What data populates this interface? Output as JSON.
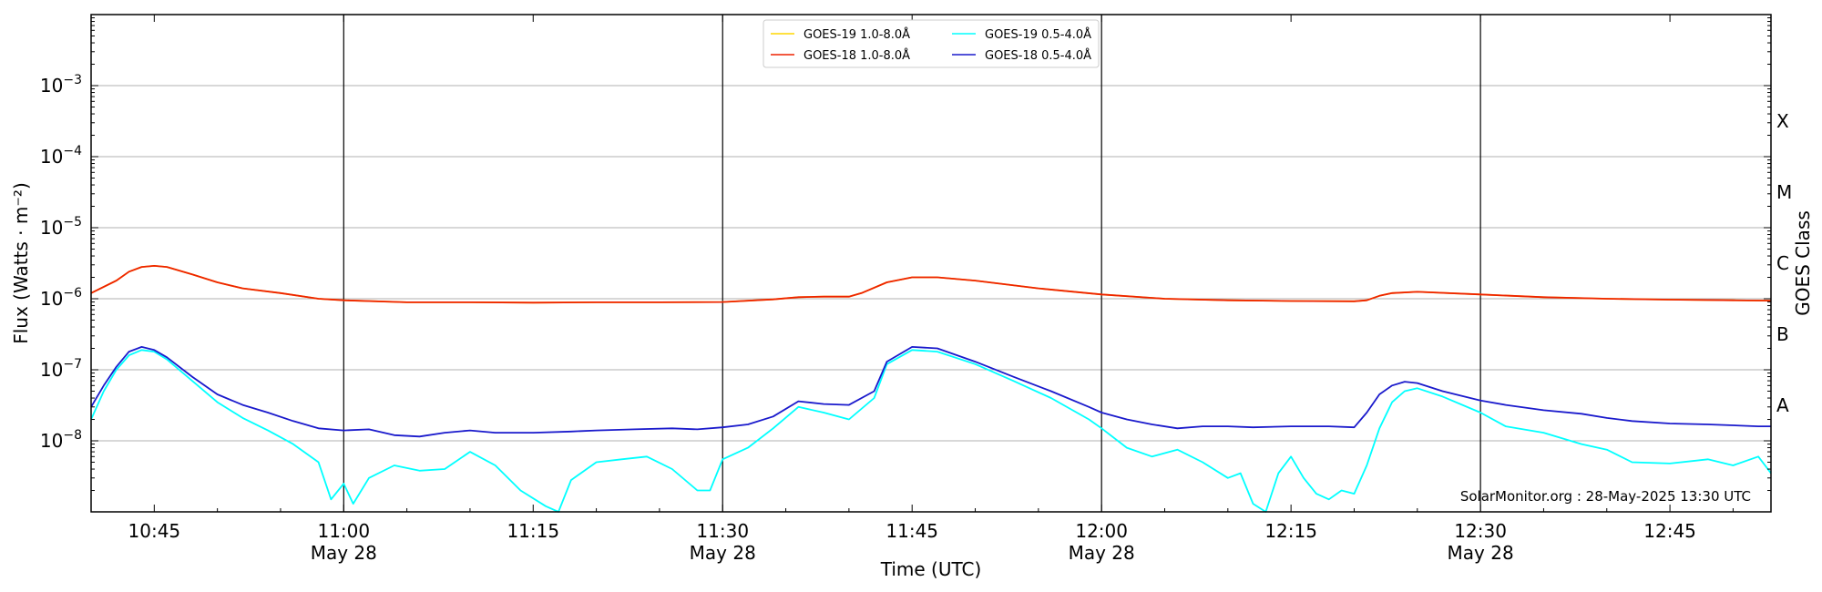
{
  "chart_data": {
    "type": "line",
    "xlabel": "Time (UTC)",
    "ylabel": "Flux (Watts · m⁻²)",
    "ylabel_right": "GOES Class",
    "credit": "SolarMonitor.org : 28-May-2025 13:30 UTC",
    "x_range": [
      "10:40",
      "12:53"
    ],
    "ylim": [
      1e-09,
      0.01
    ],
    "y_scale": "log",
    "y_ticks": [
      {
        "exp": -8,
        "label": "10",
        "sup": "−8"
      },
      {
        "exp": -7,
        "label": "10",
        "sup": "−7"
      },
      {
        "exp": -6,
        "label": "10",
        "sup": "−6"
      },
      {
        "exp": -5,
        "label": "10",
        "sup": "−5"
      },
      {
        "exp": -4,
        "label": "10",
        "sup": "−4"
      },
      {
        "exp": -3,
        "label": "10",
        "sup": "−3"
      }
    ],
    "x_ticks": [
      {
        "time": "10:45",
        "label": "10:45",
        "sublabel": ""
      },
      {
        "time": "11:00",
        "label": "11:00",
        "sublabel": "May 28"
      },
      {
        "time": "11:15",
        "label": "11:15",
        "sublabel": ""
      },
      {
        "time": "11:30",
        "label": "11:30",
        "sublabel": "May 28"
      },
      {
        "time": "11:45",
        "label": "11:45",
        "sublabel": ""
      },
      {
        "time": "12:00",
        "label": "12:00",
        "sublabel": "May 28"
      },
      {
        "time": "12:15",
        "label": "12:15",
        "sublabel": ""
      },
      {
        "time": "12:30",
        "label": "12:30",
        "sublabel": "May 28"
      },
      {
        "time": "12:45",
        "label": "12:45",
        "sublabel": ""
      }
    ],
    "vertical_lines": [
      "11:00",
      "11:30",
      "12:00",
      "12:30"
    ],
    "goes_classes": [
      {
        "label": "A",
        "exp": -7.5
      },
      {
        "label": "B",
        "exp": -6.5
      },
      {
        "label": "C",
        "exp": -5.5
      },
      {
        "label": "M",
        "exp": -4.5
      },
      {
        "label": "X",
        "exp": -3.5
      }
    ],
    "grid": "horizontal at decades",
    "legend_placement": "top-center",
    "series": [
      {
        "name": "GOES-19 1.0-8.0Å",
        "color": "#ffd700",
        "x": [
          "10:40",
          "10:42",
          "10:43",
          "10:44",
          "10:45",
          "10:46",
          "10:48",
          "10:50",
          "10:52",
          "10:55",
          "10:58",
          "11:00",
          "11:05",
          "11:10",
          "11:15",
          "11:20",
          "11:25",
          "11:30",
          "11:34",
          "11:36",
          "11:38",
          "11:40",
          "11:41",
          "11:43",
          "11:45",
          "11:47",
          "11:50",
          "11:55",
          "12:00",
          "12:05",
          "12:10",
          "12:15",
          "12:20",
          "12:21",
          "12:22",
          "12:23",
          "12:25",
          "12:30",
          "12:35",
          "12:40",
          "12:45",
          "12:50",
          "12:53"
        ],
        "y": [
          1.2e-06,
          1.8e-06,
          2.4e-06,
          2.8e-06,
          2.9e-06,
          2.8e-06,
          2.2e-06,
          1.7e-06,
          1.4e-06,
          1.2e-06,
          1e-06,
          9.5e-07,
          8.9e-07,
          8.9e-07,
          8.8e-07,
          8.9e-07,
          8.9e-07,
          9e-07,
          9.8e-07,
          1.05e-06,
          1.07e-06,
          1.07e-06,
          1.2e-06,
          1.7e-06,
          2e-06,
          2e-06,
          1.8e-06,
          1.4e-06,
          1.15e-06,
          1e-06,
          9.5e-07,
          9.3e-07,
          9.2e-07,
          9.5e-07,
          1.1e-06,
          1.2e-06,
          1.25e-06,
          1.15e-06,
          1.05e-06,
          1e-06,
          9.7e-07,
          9.5e-07,
          9.4e-07
        ]
      },
      {
        "name": "GOES-18 1.0-8.0Å",
        "color": "#ee2200",
        "x": [
          "10:40",
          "10:42",
          "10:43",
          "10:44",
          "10:45",
          "10:46",
          "10:48",
          "10:50",
          "10:52",
          "10:55",
          "10:58",
          "11:00",
          "11:05",
          "11:10",
          "11:15",
          "11:20",
          "11:25",
          "11:30",
          "11:34",
          "11:36",
          "11:38",
          "11:40",
          "11:41",
          "11:43",
          "11:45",
          "11:47",
          "11:50",
          "11:55",
          "12:00",
          "12:05",
          "12:10",
          "12:15",
          "12:20",
          "12:21",
          "12:22",
          "12:23",
          "12:25",
          "12:30",
          "12:35",
          "12:40",
          "12:45",
          "12:50",
          "12:53"
        ],
        "y": [
          1.2e-06,
          1.8e-06,
          2.4e-06,
          2.8e-06,
          2.9e-06,
          2.8e-06,
          2.2e-06,
          1.7e-06,
          1.4e-06,
          1.2e-06,
          1e-06,
          9.5e-07,
          8.9e-07,
          8.9e-07,
          8.8e-07,
          8.9e-07,
          8.9e-07,
          9e-07,
          9.8e-07,
          1.05e-06,
          1.07e-06,
          1.07e-06,
          1.2e-06,
          1.7e-06,
          2e-06,
          2e-06,
          1.8e-06,
          1.4e-06,
          1.15e-06,
          1e-06,
          9.5e-07,
          9.3e-07,
          9.2e-07,
          9.5e-07,
          1.1e-06,
          1.2e-06,
          1.25e-06,
          1.15e-06,
          1.05e-06,
          1e-06,
          9.7e-07,
          9.5e-07,
          9.4e-07
        ]
      },
      {
        "name": "GOES-19 0.5-4.0Å",
        "color": "#00ffff",
        "x": [
          "10:40",
          "10:41",
          "10:42",
          "10:43",
          "10:44",
          "10:45",
          "10:46",
          "10:48",
          "10:50",
          "10:52",
          "10:54",
          "10:56",
          "10:58",
          "10:59",
          "11:00",
          "11:00:45",
          "11:02",
          "11:04",
          "11:06",
          "11:08",
          "11:10",
          "11:12",
          "11:14",
          "11:16",
          "11:17",
          "11:18",
          "11:20",
          "11:22",
          "11:24",
          "11:26",
          "11:28",
          "11:29",
          "11:30",
          "11:32",
          "11:34",
          "11:36",
          "11:38",
          "11:40",
          "11:42",
          "11:43",
          "11:45",
          "11:47",
          "11:50",
          "11:53",
          "11:56",
          "11:59",
          "12:00",
          "12:02",
          "12:04",
          "12:06",
          "12:08",
          "12:10",
          "12:11",
          "12:12",
          "12:13",
          "12:14",
          "12:15",
          "12:16",
          "12:17",
          "12:18",
          "12:19",
          "12:20",
          "12:21",
          "12:22",
          "12:23",
          "12:24",
          "12:25",
          "12:27",
          "12:30",
          "12:32",
          "12:35",
          "12:38",
          "12:40",
          "12:42",
          "12:45",
          "12:48",
          "12:50",
          "12:52",
          "12:53"
        ],
        "y": [
          2e-08,
          5e-08,
          1e-07,
          1.6e-07,
          1.9e-07,
          1.8e-07,
          1.4e-07,
          7e-08,
          3.5e-08,
          2.1e-08,
          1.4e-08,
          9e-09,
          5e-09,
          1.5e-09,
          2.5e-09,
          1.3e-09,
          3e-09,
          4.5e-09,
          3.8e-09,
          4e-09,
          7e-09,
          4.5e-09,
          2e-09,
          1.2e-09,
          1e-09,
          2.8e-09,
          5e-09,
          5.5e-09,
          6e-09,
          4e-09,
          2e-09,
          2e-09,
          5.5e-09,
          8e-09,
          1.5e-08,
          3e-08,
          2.5e-08,
          2e-08,
          4e-08,
          1.2e-07,
          1.9e-07,
          1.8e-07,
          1.2e-07,
          7e-08,
          4e-08,
          2e-08,
          1.5e-08,
          8e-09,
          6e-09,
          7.5e-09,
          5e-09,
          3e-09,
          3.5e-09,
          1.3e-09,
          1e-09,
          3.5e-09,
          6e-09,
          3e-09,
          1.8e-09,
          1.5e-09,
          2e-09,
          1.8e-09,
          4.5e-09,
          1.5e-08,
          3.5e-08,
          5e-08,
          5.5e-08,
          4.2e-08,
          2.5e-08,
          1.6e-08,
          1.3e-08,
          9e-09,
          7.5e-09,
          5e-09,
          4.8e-09,
          5.5e-09,
          4.5e-09,
          6e-09,
          3.5e-09
        ]
      },
      {
        "name": "GOES-18 0.5-4.0Å",
        "color": "#1a1acc",
        "x": [
          "10:40",
          "10:41",
          "10:42",
          "10:43",
          "10:44",
          "10:45",
          "10:46",
          "10:48",
          "10:50",
          "10:52",
          "10:54",
          "10:56",
          "10:58",
          "11:00",
          "11:02",
          "11:04",
          "11:06",
          "11:08",
          "11:10",
          "11:12",
          "11:15",
          "11:18",
          "11:20",
          "11:23",
          "11:26",
          "11:28",
          "11:30",
          "11:32",
          "11:34",
          "11:36",
          "11:38",
          "11:40",
          "11:42",
          "11:43",
          "11:45",
          "11:47",
          "11:50",
          "11:53",
          "11:56",
          "11:59",
          "12:00",
          "12:02",
          "12:04",
          "12:06",
          "12:08",
          "12:10",
          "12:12",
          "12:15",
          "12:18",
          "12:20",
          "12:21",
          "12:22",
          "12:23",
          "12:24",
          "12:25",
          "12:27",
          "12:30",
          "12:32",
          "12:35",
          "12:38",
          "12:40",
          "12:42",
          "12:45",
          "12:48",
          "12:50",
          "12:52",
          "12:53"
        ],
        "y": [
          3e-08,
          6e-08,
          1.1e-07,
          1.8e-07,
          2.1e-07,
          1.9e-07,
          1.5e-07,
          8e-08,
          4.5e-08,
          3.2e-08,
          2.5e-08,
          1.9e-08,
          1.5e-08,
          1.4e-08,
          1.45e-08,
          1.2e-08,
          1.15e-08,
          1.3e-08,
          1.4e-08,
          1.3e-08,
          1.3e-08,
          1.35e-08,
          1.4e-08,
          1.45e-08,
          1.5e-08,
          1.45e-08,
          1.55e-08,
          1.7e-08,
          2.2e-08,
          3.6e-08,
          3.3e-08,
          3.2e-08,
          5e-08,
          1.3e-07,
          2.1e-07,
          2e-07,
          1.3e-07,
          8e-08,
          5e-08,
          3e-08,
          2.5e-08,
          2e-08,
          1.7e-08,
          1.5e-08,
          1.6e-08,
          1.6e-08,
          1.55e-08,
          1.6e-08,
          1.6e-08,
          1.55e-08,
          2.5e-08,
          4.5e-08,
          6e-08,
          6.8e-08,
          6.5e-08,
          5e-08,
          3.7e-08,
          3.2e-08,
          2.7e-08,
          2.4e-08,
          2.1e-08,
          1.9e-08,
          1.75e-08,
          1.7e-08,
          1.65e-08,
          1.6e-08,
          1.6e-08
        ]
      }
    ]
  }
}
